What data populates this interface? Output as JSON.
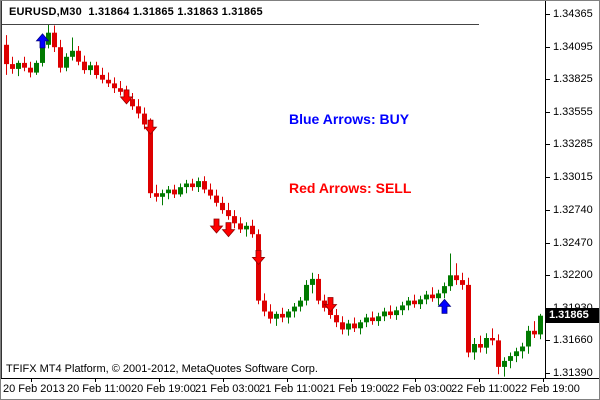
{
  "window": {
    "title": "EURUSD,M30  1.31864 1.31865 1.31863 1.31865",
    "symbol": "EURUSD",
    "timeframe": "M30",
    "quote_open": "1.31864",
    "quote_high": "1.31865",
    "quote_low": "1.31863",
    "quote_close": "1.31865"
  },
  "legend": {
    "buy": "Blue Arrows: BUY",
    "sell": "Red Arrows: SELL",
    "buy_color": "#0000FF",
    "sell_color": "#FF0000"
  },
  "footer": {
    "copyright": "TFIFX MT4 Platform, © 2001-2012, MetaQuotes Software Corp."
  },
  "price_axis": {
    "current": "1.31865",
    "current_value": 1.31865,
    "badge_bg": "#000000",
    "badge_text_color": "#FFFFFF",
    "ticks": [
      "1.34365",
      "1.34095",
      "1.33825",
      "1.33555",
      "1.33285",
      "1.33015",
      "1.32740",
      "1.32470",
      "1.32200",
      "1.31930",
      "1.31660",
      "1.31390"
    ]
  },
  "time_axis": {
    "labels": [
      "20 Feb 2013",
      "20 Feb 11:00",
      "20 Feb 19:00",
      "21 Feb 03:00",
      "21 Feb 11:00",
      "21 Feb 19:00",
      "22 Feb 03:00",
      "22 Feb 11:00",
      "22 Feb 19:00"
    ]
  },
  "chart_data": {
    "type": "candlestick",
    "title": "EURUSD M30 candlestick chart with buy/sell arrow signals",
    "up_color": "#007A00",
    "down_color": "#DD0000",
    "buy_arrow_color": "#0000FF",
    "sell_arrow_color": "#FF0000",
    "background": "#FFFFFF",
    "grid": false,
    "ylim": [
      1.3139,
      1.34365
    ],
    "y_calibration": {
      "price_high": 1.34365,
      "y_high": 13,
      "price_low": 1.3139,
      "y_low": 372
    },
    "candles": [
      [
        1.3411,
        1.3419,
        1.3386,
        1.3395
      ],
      [
        1.3395,
        1.3401,
        1.3387,
        1.3391
      ],
      [
        1.3391,
        1.3398,
        1.3385,
        1.3396
      ],
      [
        1.3396,
        1.3401,
        1.3389,
        1.3392
      ],
      [
        1.3392,
        1.3397,
        1.3384,
        1.3388
      ],
      [
        1.3388,
        1.3398,
        1.3386,
        1.3396
      ],
      [
        1.3396,
        1.3414,
        1.3393,
        1.3411
      ],
      [
        1.3411,
        1.3428,
        1.3408,
        1.3421
      ],
      [
        1.3421,
        1.3427,
        1.3405,
        1.3409
      ],
      [
        1.3409,
        1.3415,
        1.3388,
        1.3392
      ],
      [
        1.3392,
        1.3404,
        1.3389,
        1.3401
      ],
      [
        1.3401,
        1.3417,
        1.3398,
        1.3406
      ],
      [
        1.3406,
        1.341,
        1.3394,
        1.3397
      ],
      [
        1.3397,
        1.3402,
        1.3387,
        1.339
      ],
      [
        1.339,
        1.3397,
        1.3386,
        1.3394
      ],
      [
        1.3394,
        1.3397,
        1.3383,
        1.3386
      ],
      [
        1.3386,
        1.3392,
        1.3379,
        1.3382
      ],
      [
        1.3382,
        1.3388,
        1.3376,
        1.3379
      ],
      [
        1.3379,
        1.3384,
        1.3371,
        1.3375
      ],
      [
        1.3375,
        1.3381,
        1.3369,
        1.3372
      ],
      [
        1.3372,
        1.3377,
        1.3363,
        1.3366
      ],
      [
        1.3366,
        1.3371,
        1.3357,
        1.336
      ],
      [
        1.336,
        1.3366,
        1.335,
        1.3354
      ],
      [
        1.3354,
        1.3359,
        1.3341,
        1.3345
      ],
      [
        1.3345,
        1.335,
        1.3284,
        1.3288
      ],
      [
        1.3288,
        1.3295,
        1.3281,
        1.3285
      ],
      [
        1.3285,
        1.3291,
        1.3278,
        1.3288
      ],
      [
        1.3288,
        1.3294,
        1.3283,
        1.3291
      ],
      [
        1.3291,
        1.3295,
        1.3284,
        1.3287
      ],
      [
        1.3287,
        1.3296,
        1.3285,
        1.3293
      ],
      [
        1.3293,
        1.3299,
        1.3288,
        1.3296
      ],
      [
        1.3296,
        1.33,
        1.329,
        1.3293
      ],
      [
        1.3293,
        1.3301,
        1.3289,
        1.3298
      ],
      [
        1.3298,
        1.3302,
        1.3288,
        1.3291
      ],
      [
        1.3291,
        1.3296,
        1.3283,
        1.3286
      ],
      [
        1.3286,
        1.3291,
        1.3277,
        1.328
      ],
      [
        1.328,
        1.3285,
        1.3271,
        1.3274
      ],
      [
        1.3274,
        1.328,
        1.3266,
        1.3269
      ],
      [
        1.3269,
        1.3274,
        1.3259,
        1.3263
      ],
      [
        1.3263,
        1.3268,
        1.3255,
        1.3258
      ],
      [
        1.3258,
        1.3264,
        1.3252,
        1.3261
      ],
      [
        1.3261,
        1.3266,
        1.3251,
        1.3254
      ],
      [
        1.3254,
        1.3258,
        1.3196,
        1.3199
      ],
      [
        1.3199,
        1.3205,
        1.3186,
        1.319
      ],
      [
        1.319,
        1.3196,
        1.318,
        1.3184
      ],
      [
        1.3184,
        1.319,
        1.3178,
        1.3188
      ],
      [
        1.3188,
        1.3193,
        1.3181,
        1.3185
      ],
      [
        1.3185,
        1.3192,
        1.318,
        1.319
      ],
      [
        1.319,
        1.3197,
        1.3185,
        1.3194
      ],
      [
        1.3194,
        1.3202,
        1.319,
        1.3199
      ],
      [
        1.3199,
        1.3216,
        1.3195,
        1.3212
      ],
      [
        1.3212,
        1.3222,
        1.3205,
        1.3217
      ],
      [
        1.3217,
        1.3221,
        1.3196,
        1.3199
      ],
      [
        1.3199,
        1.3204,
        1.319,
        1.3193
      ],
      [
        1.3193,
        1.3198,
        1.3184,
        1.3187
      ],
      [
        1.3187,
        1.3192,
        1.3177,
        1.3181
      ],
      [
        1.3181,
        1.3186,
        1.3171,
        1.3175
      ],
      [
        1.3175,
        1.3183,
        1.317,
        1.318
      ],
      [
        1.318,
        1.3185,
        1.3173,
        1.3176
      ],
      [
        1.3176,
        1.3183,
        1.3171,
        1.3181
      ],
      [
        1.3181,
        1.3188,
        1.3177,
        1.3185
      ],
      [
        1.3185,
        1.319,
        1.3179,
        1.3182
      ],
      [
        1.3182,
        1.3189,
        1.3178,
        1.3186
      ],
      [
        1.3186,
        1.3193,
        1.3182,
        1.319
      ],
      [
        1.319,
        1.3195,
        1.3184,
        1.3187
      ],
      [
        1.3187,
        1.3194,
        1.3183,
        1.3191
      ],
      [
        1.3191,
        1.3198,
        1.3187,
        1.3195
      ],
      [
        1.3195,
        1.3202,
        1.3191,
        1.3199
      ],
      [
        1.3199,
        1.3204,
        1.3193,
        1.3196
      ],
      [
        1.3196,
        1.3203,
        1.3192,
        1.32
      ],
      [
        1.32,
        1.3207,
        1.3196,
        1.3204
      ],
      [
        1.3204,
        1.321,
        1.3198,
        1.3201
      ],
      [
        1.3201,
        1.3208,
        1.3195,
        1.3205
      ],
      [
        1.3205,
        1.3214,
        1.3201,
        1.3211
      ],
      [
        1.3211,
        1.3238,
        1.3207,
        1.322
      ],
      [
        1.322,
        1.323,
        1.3212,
        1.3216
      ],
      [
        1.3216,
        1.3222,
        1.3208,
        1.3212
      ],
      [
        1.3212,
        1.3218,
        1.3152,
        1.3156
      ],
      [
        1.3156,
        1.3168,
        1.315,
        1.3163
      ],
      [
        1.3163,
        1.317,
        1.3156,
        1.316
      ],
      [
        1.316,
        1.3172,
        1.3155,
        1.3168
      ],
      [
        1.3168,
        1.3176,
        1.3162,
        1.3166
      ],
      [
        1.3166,
        1.3171,
        1.3138,
        1.3144
      ],
      [
        1.3144,
        1.3152,
        1.3136,
        1.3149
      ],
      [
        1.3149,
        1.3156,
        1.3143,
        1.3153
      ],
      [
        1.3153,
        1.316,
        1.3148,
        1.3157
      ],
      [
        1.3157,
        1.3164,
        1.3151,
        1.3161
      ],
      [
        1.3161,
        1.3178,
        1.3155,
        1.3174
      ],
      [
        1.3174,
        1.3182,
        1.3168,
        1.3171
      ],
      [
        1.3171,
        1.3188,
        1.3167,
        1.31865
      ]
    ],
    "arrows": [
      {
        "dir": "up",
        "index": 6,
        "tip_price": 1.342,
        "meaning": "BUY"
      },
      {
        "dir": "down",
        "index": 20,
        "tip_price": 1.3362,
        "meaning": "SELL"
      },
      {
        "dir": "down",
        "index": 24,
        "tip_price": 1.3337,
        "meaning": "SELL"
      },
      {
        "dir": "down",
        "index": 35,
        "tip_price": 1.3255,
        "meaning": "SELL"
      },
      {
        "dir": "down",
        "index": 37,
        "tip_price": 1.3252,
        "meaning": "SELL"
      },
      {
        "dir": "down",
        "index": 42,
        "tip_price": 1.3229,
        "meaning": "SELL"
      },
      {
        "dir": "down",
        "index": 54,
        "tip_price": 1.319,
        "meaning": "SELL"
      },
      {
        "dir": "up",
        "index": 73,
        "tip_price": 1.32,
        "meaning": "BUY"
      }
    ]
  }
}
